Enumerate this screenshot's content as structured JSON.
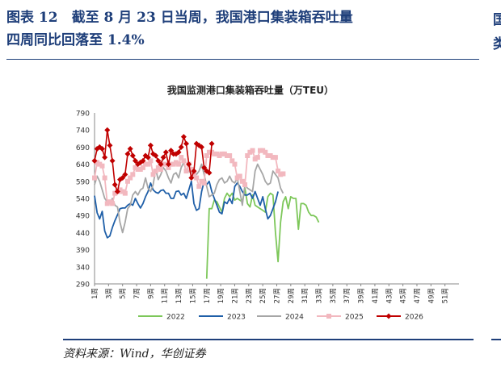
{
  "figure": {
    "title_line1": "图表 12　截至 8 月 23 日当周，我国港口集装箱吞吐量",
    "title_line2": "四周同比回落至 1.4%",
    "source": "资料来源：Wind，华创证券",
    "edge_char_1": "国",
    "edge_char_2": "类"
  },
  "chart_data": {
    "type": "line",
    "title": "我国监测港口集装箱吞吐量（万TEU）",
    "xlabel": "",
    "ylabel": "",
    "ylim": [
      290,
      790
    ],
    "yticks": [
      290,
      340,
      390,
      440,
      490,
      540,
      590,
      640,
      690,
      740,
      790
    ],
    "xlim": [
      1,
      53
    ],
    "xtick_labels": [
      "1周",
      "3周",
      "5周",
      "7周",
      "9周",
      "11周",
      "13周",
      "15周",
      "17周",
      "19周",
      "21周",
      "23周",
      "25周",
      "27周",
      "29周",
      "31周",
      "33周",
      "35周",
      "37周",
      "39周",
      "41周",
      "43周",
      "45周",
      "47周",
      "49周",
      "51周"
    ],
    "legend_position": "bottom",
    "grid": false,
    "series": [
      {
        "name": "2022",
        "color": "#7dc75a",
        "marker": "none",
        "start_week": 17,
        "values": [
          305,
          510,
          510,
          535,
          530,
          515,
          500,
          540,
          555,
          545,
          555,
          535,
          540,
          535,
          530,
          570,
          525,
          515,
          550,
          520,
          515,
          510,
          505,
          500,
          545,
          555,
          550,
          440,
          355,
          470,
          530,
          545,
          510,
          545,
          540,
          540,
          450,
          525,
          525,
          520,
          500,
          490,
          490,
          485,
          470
        ]
      },
      {
        "name": "2023",
        "color": "#1f5fa8",
        "marker": "none",
        "start_week": 1,
        "values": [
          548,
          498,
          480,
          502,
          445,
          425,
          430,
          455,
          475,
          492,
          510,
          512,
          512,
          520,
          525,
          520,
          540,
          525,
          512,
          525,
          545,
          560,
          585,
          565,
          558,
          555,
          563,
          565,
          555,
          555,
          540,
          540,
          560,
          562,
          550,
          555,
          540,
          565,
          590,
          525,
          505,
          510,
          560,
          590,
          580,
          590,
          560,
          540,
          520,
          500,
          495,
          530,
          525,
          540,
          525,
          575,
          585,
          575,
          560,
          550,
          550,
          555,
          540,
          560,
          540,
          520,
          545,
          510,
          480,
          490,
          510,
          530,
          560
        ]
      },
      {
        "name": "2024",
        "color": "#a6a6a6",
        "marker": "none",
        "start_week": 1,
        "values": [
          580,
          605,
          590,
          565,
          540,
          530,
          525,
          540,
          520,
          515,
          470,
          440,
          470,
          510,
          520,
          550,
          560,
          550,
          565,
          570,
          600,
          570,
          560,
          580,
          625,
          595,
          610,
          630,
          620,
          600,
          585,
          610,
          615,
          600,
          630,
          645,
          620,
          620,
          615,
          620,
          610,
          620,
          640,
          610,
          575,
          545,
          550,
          555,
          580,
          595,
          600,
          585,
          590,
          605,
          590,
          585,
          600,
          560,
          520,
          580,
          570,
          565,
          560,
          620,
          640,
          625,
          610,
          590,
          580,
          585,
          620,
          610,
          600,
          570,
          555
        ]
      },
      {
        "name": "2025",
        "color": "#f2b8bf",
        "marker": "square",
        "start_week": 1,
        "values": [
          600,
          645,
          640,
          635,
          600,
          525,
          530,
          525,
          555,
          560,
          565,
          560,
          555,
          590,
          600,
          610,
          630,
          625,
          625,
          630,
          640,
          640,
          650,
          610,
          620,
          630,
          625,
          640,
          640,
          630,
          640,
          640,
          645,
          640,
          660,
          650,
          620,
          640,
          625,
          610,
          600,
          575,
          590,
          585,
          665,
          675,
          675,
          670,
          670,
          665,
          670,
          670,
          665,
          665,
          650,
          640,
          600,
          605,
          590,
          580,
          665,
          675,
          680,
          655,
          660,
          680,
          680,
          675,
          665,
          665,
          660,
          660,
          620,
          610,
          612
        ]
      },
      {
        "name": "2026",
        "color": "#c00000",
        "marker": "diamond",
        "start_week": 1,
        "values": [
          650,
          685,
          690,
          685,
          660,
          740,
          695,
          650,
          580,
          560,
          595,
          600,
          610,
          670,
          685,
          665,
          650,
          640,
          645,
          650,
          665,
          660,
          695,
          670,
          665,
          650,
          640,
          660,
          675,
          640,
          680,
          670,
          670,
          675,
          690,
          720,
          700,
          640,
          600,
          620,
          700,
          695,
          690,
          630,
          620,
          615,
          700
        ]
      }
    ]
  }
}
